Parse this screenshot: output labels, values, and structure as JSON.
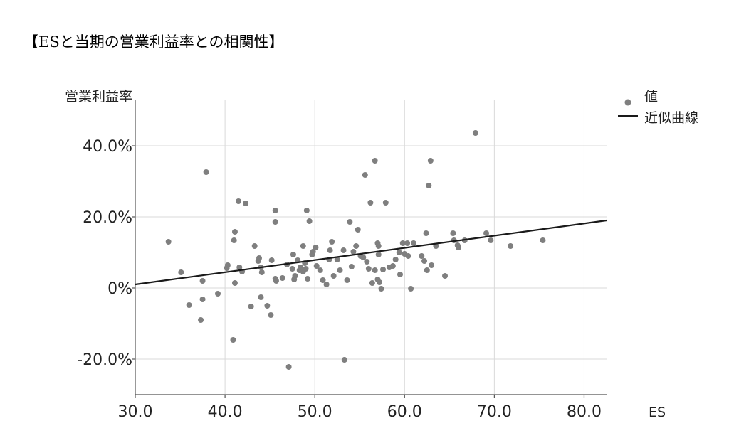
{
  "chart_data": {
    "type": "scatter",
    "title": "【ESと当期の営業利益率との相関性】",
    "xlabel": "ES",
    "ylabel": "営業利益率",
    "xlim": [
      30,
      82.5
    ],
    "ylim": [
      -30,
      53
    ],
    "x_ticks": [
      30,
      40,
      50,
      60,
      70,
      80
    ],
    "x_tick_labels": [
      "30.0",
      "40.0",
      "50.0",
      "60.0",
      "70.0",
      "80.0"
    ],
    "y_ticks": [
      -20,
      0,
      20,
      40
    ],
    "y_tick_labels": [
      "-20.0%",
      "0%",
      "20.0%",
      "40.0%"
    ],
    "grid": true,
    "legend_position": "right",
    "series": [
      {
        "name": "値",
        "type": "scatter",
        "color": "#7f7f7f",
        "points": [
          [
            33.7,
            13.0
          ],
          [
            35.1,
            4.4
          ],
          [
            36.0,
            -4.8
          ],
          [
            37.3,
            -9.0
          ],
          [
            37.5,
            -3.2
          ],
          [
            37.5,
            2.0
          ],
          [
            37.9,
            32.6
          ],
          [
            39.2,
            -1.6
          ],
          [
            40.2,
            5.6
          ],
          [
            40.3,
            6.4
          ],
          [
            40.9,
            -14.6
          ],
          [
            41.0,
            13.4
          ],
          [
            41.1,
            15.8
          ],
          [
            41.1,
            1.4
          ],
          [
            41.5,
            24.4
          ],
          [
            41.6,
            5.8
          ],
          [
            41.9,
            4.6
          ],
          [
            42.3,
            23.8
          ],
          [
            42.9,
            -5.2
          ],
          [
            43.3,
            11.8
          ],
          [
            43.7,
            7.6
          ],
          [
            43.8,
            8.4
          ],
          [
            44.0,
            -2.6
          ],
          [
            44.0,
            5.8
          ],
          [
            44.1,
            4.4
          ],
          [
            44.7,
            -5.0
          ],
          [
            45.1,
            -7.6
          ],
          [
            45.2,
            7.8
          ],
          [
            45.6,
            21.8
          ],
          [
            45.6,
            18.6
          ],
          [
            45.6,
            2.6
          ],
          [
            45.7,
            2.0
          ],
          [
            46.4,
            2.8
          ],
          [
            46.9,
            6.6
          ],
          [
            47.1,
            -22.2
          ],
          [
            47.5,
            5.4
          ],
          [
            47.6,
            9.4
          ],
          [
            47.7,
            2.4
          ],
          [
            47.8,
            3.4
          ],
          [
            48.1,
            7.8
          ],
          [
            48.3,
            5.0
          ],
          [
            48.4,
            5.8
          ],
          [
            48.7,
            11.8
          ],
          [
            48.7,
            4.6
          ],
          [
            48.9,
            7.0
          ],
          [
            49.0,
            5.4
          ],
          [
            49.1,
            21.8
          ],
          [
            49.2,
            2.6
          ],
          [
            49.4,
            18.8
          ],
          [
            49.7,
            9.4
          ],
          [
            49.8,
            10.2
          ],
          [
            50.1,
            11.4
          ],
          [
            50.2,
            6.2
          ],
          [
            50.6,
            5.0
          ],
          [
            50.9,
            2.2
          ],
          [
            51.3,
            1.0
          ],
          [
            51.6,
            8.0
          ],
          [
            51.7,
            10.6
          ],
          [
            51.9,
            13.0
          ],
          [
            52.1,
            3.4
          ],
          [
            52.5,
            8.0
          ],
          [
            52.8,
            5.0
          ],
          [
            53.2,
            10.6
          ],
          [
            53.3,
            -20.2
          ],
          [
            53.6,
            2.2
          ],
          [
            53.9,
            18.6
          ],
          [
            54.1,
            6.0
          ],
          [
            54.3,
            10.2
          ],
          [
            54.6,
            11.8
          ],
          [
            54.8,
            16.4
          ],
          [
            55.1,
            9.0
          ],
          [
            55.4,
            8.6
          ],
          [
            55.6,
            31.8
          ],
          [
            55.8,
            7.4
          ],
          [
            56.0,
            5.4
          ],
          [
            56.2,
            24.0
          ],
          [
            56.4,
            1.4
          ],
          [
            56.7,
            35.8
          ],
          [
            56.7,
            5.0
          ],
          [
            57.0,
            12.6
          ],
          [
            57.1,
            11.8
          ],
          [
            57.1,
            9.4
          ],
          [
            57.0,
            2.4
          ],
          [
            57.2,
            1.6
          ],
          [
            57.4,
            -0.2
          ],
          [
            57.6,
            5.2
          ],
          [
            57.9,
            24.0
          ],
          [
            58.3,
            5.8
          ],
          [
            58.7,
            6.2
          ],
          [
            59.0,
            8.0
          ],
          [
            59.4,
            10.0
          ],
          [
            59.5,
            3.8
          ],
          [
            59.8,
            12.6
          ],
          [
            60.0,
            9.6
          ],
          [
            60.3,
            12.6
          ],
          [
            60.4,
            9.0
          ],
          [
            60.7,
            -0.2
          ],
          [
            61.0,
            12.6
          ],
          [
            61.9,
            9.0
          ],
          [
            62.2,
            7.6
          ],
          [
            62.4,
            15.4
          ],
          [
            62.5,
            5.0
          ],
          [
            62.7,
            28.8
          ],
          [
            62.9,
            35.8
          ],
          [
            63.0,
            6.4
          ],
          [
            63.5,
            11.8
          ],
          [
            64.5,
            3.4
          ],
          [
            65.4,
            15.4
          ],
          [
            65.5,
            13.4
          ],
          [
            65.9,
            12.0
          ],
          [
            66.0,
            11.4
          ],
          [
            66.7,
            13.4
          ],
          [
            67.9,
            43.6
          ],
          [
            69.1,
            15.4
          ],
          [
            69.6,
            13.4
          ],
          [
            71.8,
            11.8
          ],
          [
            75.4,
            13.4
          ]
        ]
      }
    ],
    "trendline": {
      "name": "近似曲線",
      "type": "linear",
      "color": "#1a1a1a",
      "x": [
        30,
        82.5
      ],
      "y": [
        1.0,
        19.0
      ]
    }
  }
}
